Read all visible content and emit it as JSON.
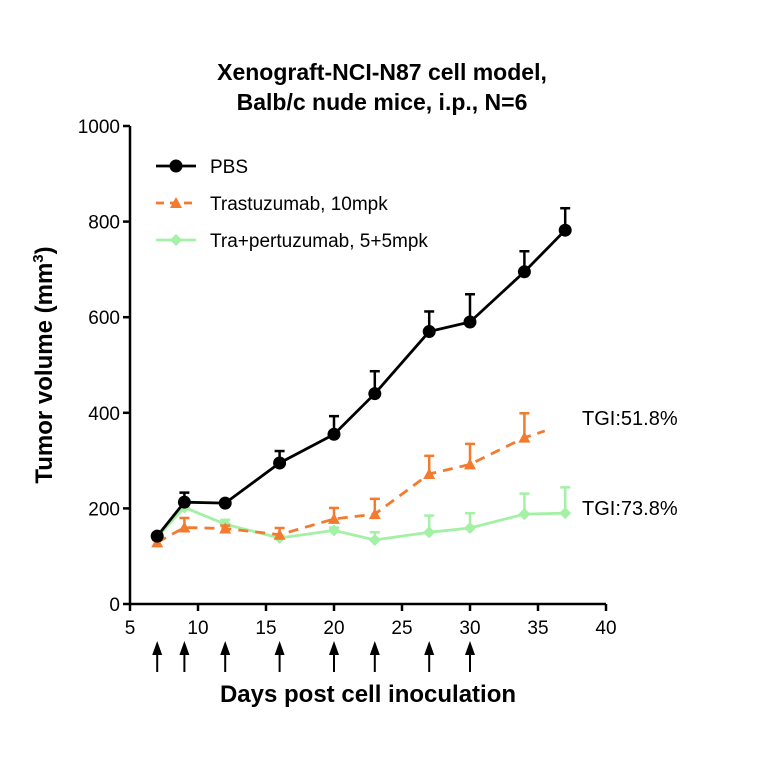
{
  "chart_data": {
    "type": "line",
    "title": [
      "Xenograft-NCI-N87 cell model,",
      "Balb/c nude mice, i.p., N=6"
    ],
    "xlabel": "Days post cell inoculation",
    "ylabel": "Tumor volume (mm",
    "ylabel_sup": "3",
    "ylabel_close": ")",
    "xlim": [
      5,
      40
    ],
    "ylim": [
      0,
      1000
    ],
    "xticks": [
      5,
      10,
      15,
      20,
      25,
      30,
      35,
      40
    ],
    "yticks": [
      0,
      200,
      400,
      600,
      800,
      1000
    ],
    "grid": false,
    "legend_position": "top-left",
    "dosing_days": [
      7,
      9,
      12,
      16,
      20,
      23,
      27,
      30
    ],
    "series": [
      {
        "name": "PBS",
        "color": "#000000",
        "marker": "circle",
        "dash": false,
        "x": [
          7,
          9,
          12,
          16,
          20,
          23,
          27,
          30,
          34,
          37
        ],
        "y": [
          142,
          213,
          211,
          295,
          355,
          440,
          570,
          590,
          695,
          782
        ],
        "err": [
          5,
          20,
          5,
          25,
          38,
          47,
          42,
          58,
          43,
          46
        ]
      },
      {
        "name": "Trastuzumab, 10mpk",
        "color": "#f47a30",
        "marker": "triangle",
        "dash": true,
        "x": [
          7,
          9,
          12,
          16,
          20,
          23,
          27,
          30,
          34
        ],
        "y": [
          129,
          160,
          158,
          145,
          178,
          188,
          272,
          292,
          348
        ],
        "err": [
          5,
          20,
          6,
          14,
          23,
          32,
          38,
          43,
          51
        ],
        "line_end": [
          35.5,
          362
        ]
      },
      {
        "name": "Tra+pertuzumab, 5+5mpk",
        "color": "#a4f0a4",
        "marker": "diamond",
        "dash": false,
        "x": [
          7,
          9,
          12,
          16,
          20,
          23,
          27,
          30,
          34,
          37
        ],
        "y": [
          140,
          202,
          167,
          138,
          154,
          134,
          150,
          159,
          188,
          190
        ],
        "err": [
          4,
          8,
          9,
          5,
          6,
          16,
          35,
          31,
          43,
          54
        ]
      }
    ],
    "annotations": [
      {
        "text": "TGI:51.8%",
        "x": 36.8,
        "y": 390
      },
      {
        "text": "TGI:73.8%",
        "x": 36.8,
        "y": 200
      }
    ]
  }
}
